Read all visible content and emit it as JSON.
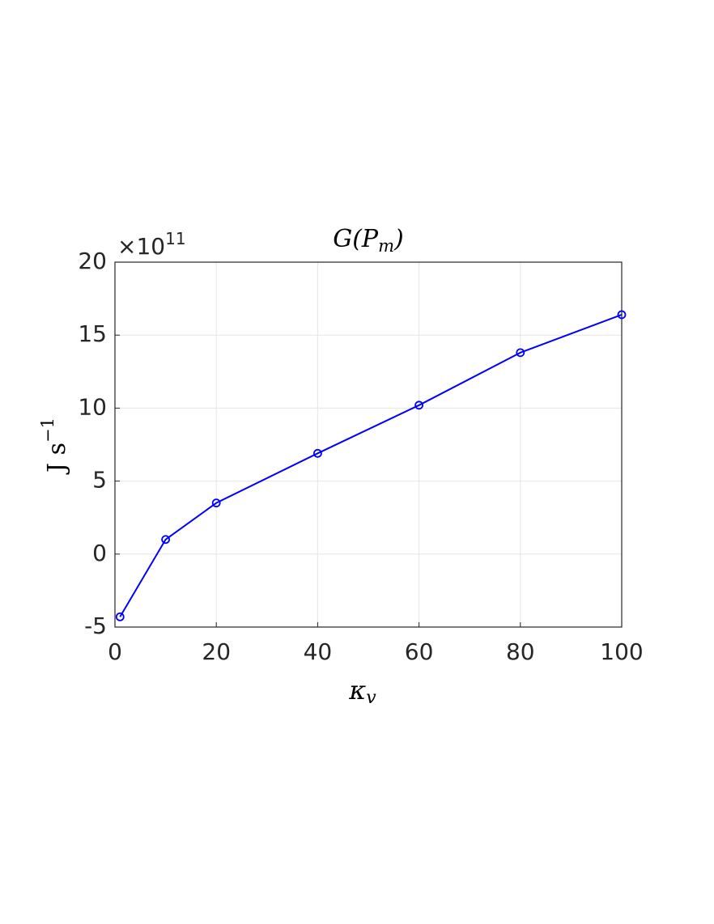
{
  "chart_data": {
    "type": "line",
    "title": [
      "G(P",
      "m",
      ")"
    ],
    "x_label": [
      "κ",
      "v"
    ],
    "y_label": [
      "J s",
      "−1"
    ],
    "y_exponent": [
      "×10",
      "11"
    ],
    "x": [
      1,
      10,
      20,
      40,
      60,
      80,
      100
    ],
    "series": [
      {
        "color": "#0000ff",
        "values": [
          -4.3,
          1.0,
          3.5,
          6.9,
          10.2,
          13.8,
          16.4
        ]
      }
    ],
    "xlim": [
      0,
      100
    ],
    "xticks": [
      0,
      20,
      40,
      60,
      80,
      100
    ],
    "ylim": [
      -5,
      20
    ],
    "yticks": [
      -5,
      0,
      5,
      10,
      15,
      20
    ],
    "grid": true
  }
}
